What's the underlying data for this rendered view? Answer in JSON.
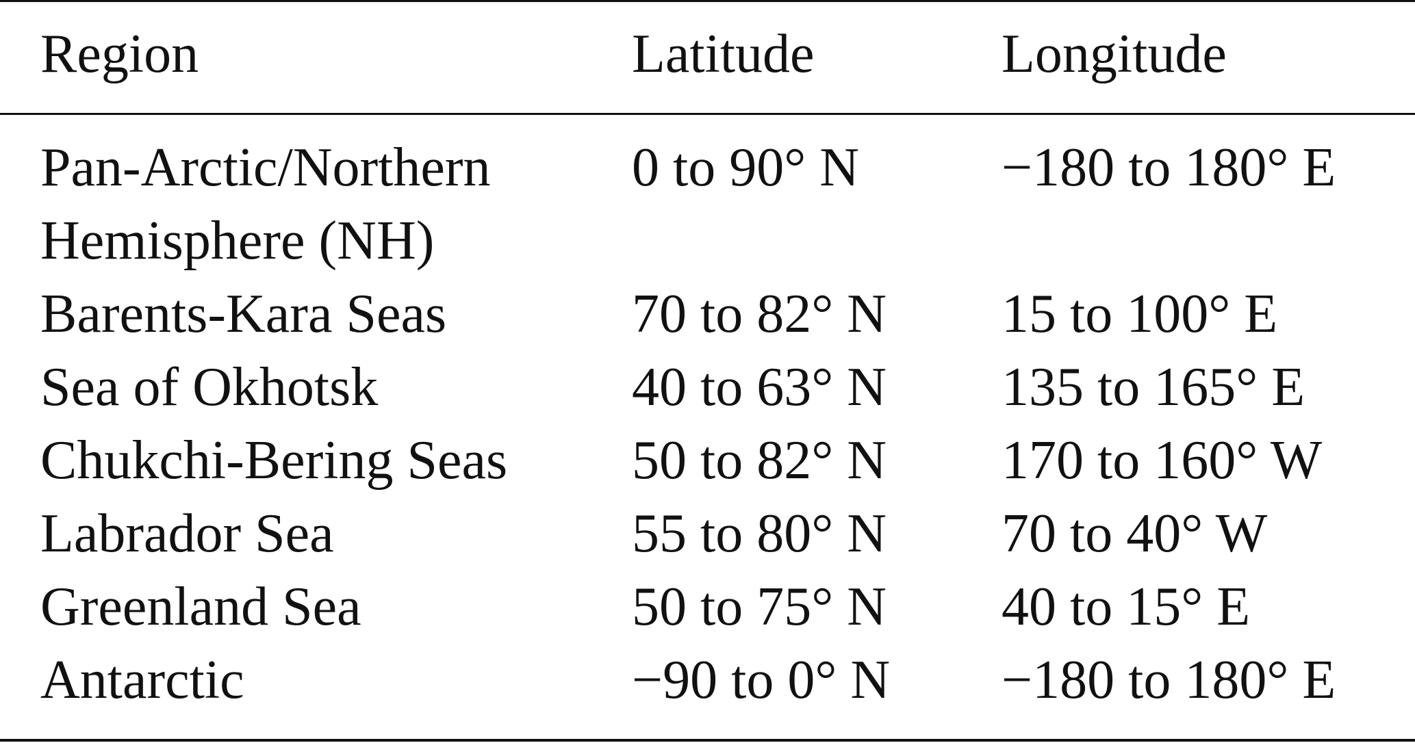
{
  "table": {
    "header": [
      "Region",
      "Latitude",
      "Longitude"
    ],
    "rows": [
      [
        "Pan-Arctic/Northern Hemisphere (NH)",
        "0 to 90° N",
        "−180 to 180° E"
      ],
      [
        "Barents-Kara Seas",
        "70 to 82° N",
        "15 to 100° E"
      ],
      [
        "Sea of Okhotsk",
        "40 to 63° N",
        "135 to 165° E"
      ],
      [
        "Chukchi-Bering Seas",
        "50 to 82° N",
        "170 to 160° W"
      ],
      [
        "Labrador Sea",
        "55 to 80° N",
        "70 to 40° W"
      ],
      [
        "Greenland Sea",
        "50 to 75° N",
        "40 to 15° E"
      ],
      [
        "Antarctic",
        "−90 to 0° N",
        "−180 to 180° E"
      ]
    ]
  }
}
